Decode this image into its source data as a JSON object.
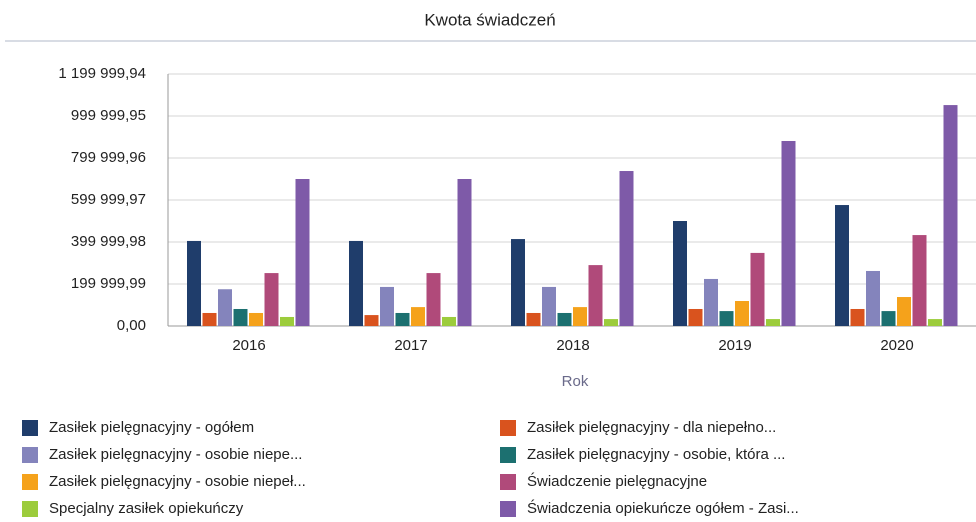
{
  "chart_data": {
    "type": "bar",
    "title": "Kwota świadczeń",
    "x_label": "Rok",
    "categories": [
      "2016",
      "2017",
      "2018",
      "2019",
      "2020"
    ],
    "series": [
      {
        "name": "Zasiłek pielęgnacyjny - ogółem",
        "color": "#1f3d6b",
        "values": [
          405000,
          405000,
          414000,
          500000,
          576000
        ]
      },
      {
        "name": "Zasiłek pielęgnacyjny - dla niepełno...",
        "color": "#d9531e",
        "values": [
          62000,
          52000,
          62000,
          81000,
          81000
        ]
      },
      {
        "name": "Zasiłek pielęgnacyjny - osobie niepe...",
        "color": "#8484bc",
        "values": [
          175000,
          186000,
          186000,
          224000,
          262000
        ]
      },
      {
        "name": "Zasiłek pielęgnacyjny - osobie, która ...",
        "color": "#1c7070",
        "values": [
          81000,
          62000,
          62000,
          71000,
          71000
        ]
      },
      {
        "name": "Zasiłek pielęgnacyjny -  osobie niepeł...",
        "color": "#f5a21b",
        "values": [
          62000,
          90000,
          90000,
          119000,
          138000
        ]
      },
      {
        "name": "Świadczenie pielęgnacyjne",
        "color": "#b04a7a",
        "values": [
          252000,
          252000,
          290000,
          348000,
          433000
        ]
      },
      {
        "name": "Specjalny zasiłek opiekuńczy",
        "color": "#9ccc3c",
        "values": [
          43000,
          43000,
          33000,
          33000,
          33000
        ]
      },
      {
        "name": "Świadczenia opiekuńcze ogółem - Zasi...",
        "color": "#7e5aa8",
        "values": [
          700000,
          700000,
          738000,
          881000,
          1052000
        ]
      }
    ],
    "ylim": [
      0,
      1199999.94
    ],
    "yticks": [
      {
        "value": 0,
        "label": "0,00"
      },
      {
        "value": 199999.99,
        "label": "199 999,99"
      },
      {
        "value": 399999.98,
        "label": "399 999,98"
      },
      {
        "value": 599999.97,
        "label": "599 999,97"
      },
      {
        "value": 799999.96,
        "label": "799 999,96"
      },
      {
        "value": 999999.95,
        "label": "999 999,95"
      },
      {
        "value": 1199999.94,
        "label": "1 199 999,94"
      }
    ],
    "grid": true
  }
}
